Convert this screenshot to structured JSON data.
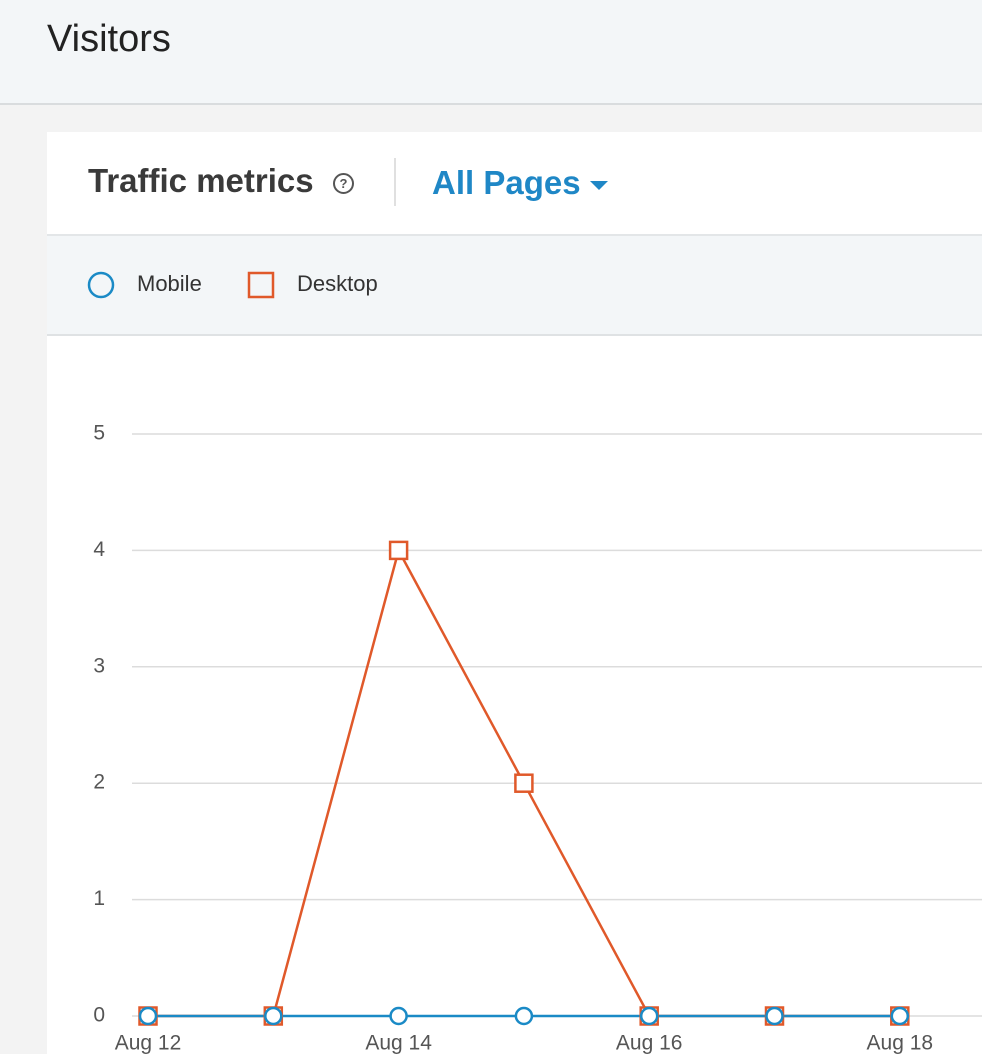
{
  "header": {
    "title": "Visitors"
  },
  "card": {
    "title": "Traffic metrics",
    "filter": "All Pages"
  },
  "chart_data": {
    "type": "line",
    "categories": [
      "Aug 12",
      null,
      "Aug 14",
      null,
      "Aug 16",
      null,
      "Aug 18"
    ],
    "series": [
      {
        "name": "Mobile",
        "color": "#1a8ac6",
        "marker": "circle",
        "values": [
          0,
          0,
          0,
          0,
          0,
          0,
          0
        ]
      },
      {
        "name": "Desktop",
        "color": "#e0592a",
        "marker": "square",
        "values": [
          0,
          0,
          4,
          2,
          0,
          0,
          0
        ]
      }
    ],
    "ylim": [
      0,
      5
    ],
    "yticks": [
      0,
      1,
      2,
      3,
      4,
      5
    ],
    "grid": true
  }
}
